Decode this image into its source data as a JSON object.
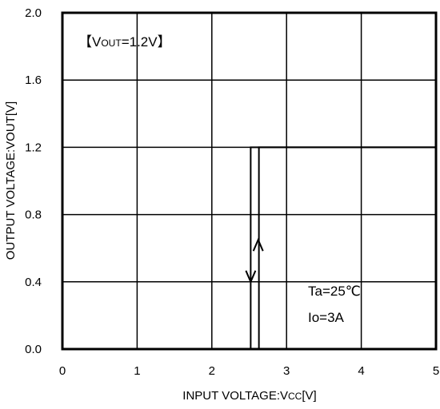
{
  "chart_data": {
    "type": "line",
    "title": "",
    "xlabel_main": "INPUT VOLTAGE:V",
    "xlabel_sub": "CC",
    "xlabel_unit": "[V]",
    "ylabel": "OUTPUT VOLTAGE:VOUT[V]",
    "xlim": [
      0,
      5
    ],
    "ylim": [
      0.0,
      2.0
    ],
    "x_ticks": [
      "0",
      "1",
      "2",
      "3",
      "4",
      "5"
    ],
    "y_ticks": [
      "0.0",
      "0.4",
      "0.8",
      "1.2",
      "1.6",
      "2.0"
    ],
    "grid": true,
    "annotations": {
      "condition_prefix": "【V",
      "condition_sub": "OUT",
      "condition_suffix": "=1.2V】",
      "temperature": "Ta=25℃",
      "current": "Io=3A"
    },
    "series": [
      {
        "direction": "rising",
        "x": [
          0,
          2.63,
          2.63,
          5
        ],
        "y": [
          0,
          0,
          1.2,
          1.2
        ]
      },
      {
        "direction": "falling",
        "x": [
          0,
          2.52,
          2.52,
          5
        ],
        "y": [
          0,
          0,
          1.2,
          1.2
        ]
      }
    ],
    "arrows": [
      {
        "direction": "up",
        "x": 2.62,
        "y": 0.65
      },
      {
        "direction": "down",
        "x": 2.52,
        "y": 0.4
      }
    ]
  }
}
